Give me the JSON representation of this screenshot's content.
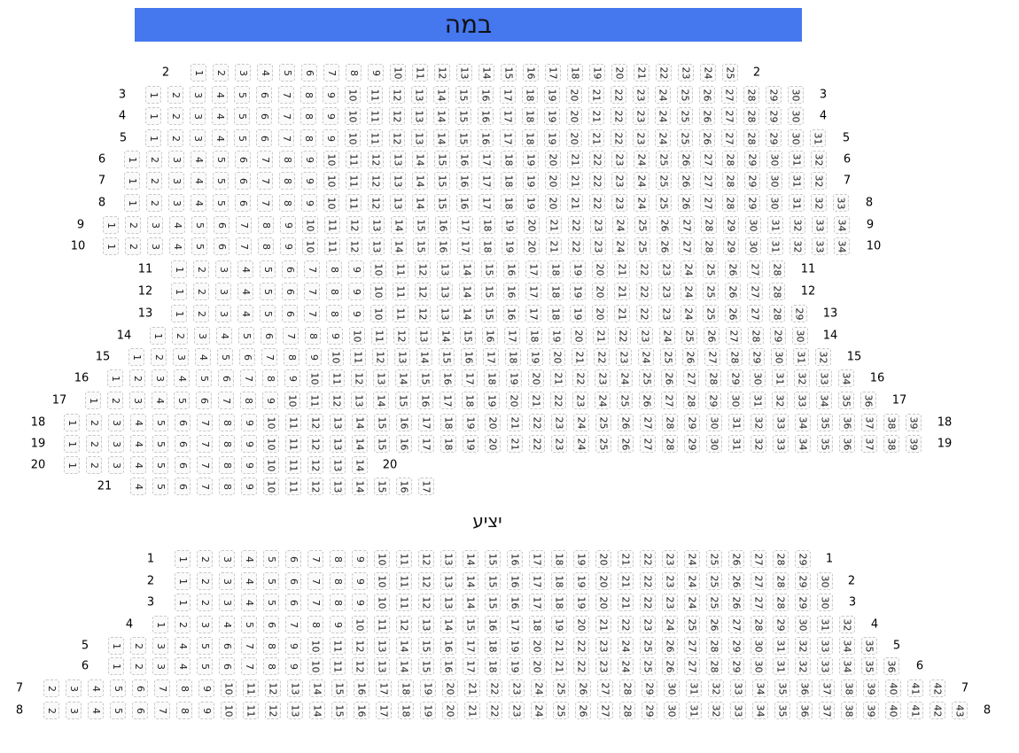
{
  "stage_label": "במה",
  "balcony_label": "יציע",
  "colors": {
    "stage": "#4577ee",
    "seat_border": "#c8c8c8"
  },
  "hall": {
    "rows": [
      {
        "label": "2",
        "first": 1,
        "last": 25
      },
      {
        "label": "3",
        "first": 1,
        "last": 30
      },
      {
        "label": "4",
        "first": 1,
        "last": 30
      },
      {
        "label": "5",
        "first": 1,
        "last": 31
      },
      {
        "label": "6",
        "first": 1,
        "last": 32
      },
      {
        "label": "7",
        "first": 1,
        "last": 32
      },
      {
        "label": "8",
        "first": 1,
        "last": 33
      },
      {
        "label": "9",
        "first": 1,
        "last": 34
      },
      {
        "label": "10",
        "first": 1,
        "last": 34
      },
      {
        "label": "11",
        "first": 1,
        "last": 28
      },
      {
        "label": "12",
        "first": 1,
        "last": 28
      },
      {
        "label": "13",
        "first": 1,
        "last": 29
      },
      {
        "label": "14",
        "first": 1,
        "last": 30
      },
      {
        "label": "15",
        "first": 1,
        "last": 32
      },
      {
        "label": "16",
        "first": 1,
        "last": 34
      },
      {
        "label": "17",
        "first": 1,
        "last": 36
      },
      {
        "label": "18",
        "first": 1,
        "last": 39
      },
      {
        "label": "19",
        "first": 1,
        "last": 39
      },
      {
        "label": "20",
        "first": 1,
        "last": 14
      },
      {
        "label": "21",
        "first": 4,
        "last": 17,
        "no_right_label": true
      }
    ]
  },
  "balcony": {
    "rows": [
      {
        "label": "1",
        "first": 1,
        "last": 29
      },
      {
        "label": "2",
        "first": 1,
        "last": 30
      },
      {
        "label": "3",
        "first": 1,
        "last": 30
      },
      {
        "label": "4",
        "first": 1,
        "last": 32
      },
      {
        "label": "5",
        "first": 1,
        "last": 35
      },
      {
        "label": "6",
        "first": 1,
        "last": 36
      },
      {
        "label": "7",
        "first": 2,
        "last": 42
      },
      {
        "label": "8",
        "first": 2,
        "last": 43
      }
    ]
  }
}
